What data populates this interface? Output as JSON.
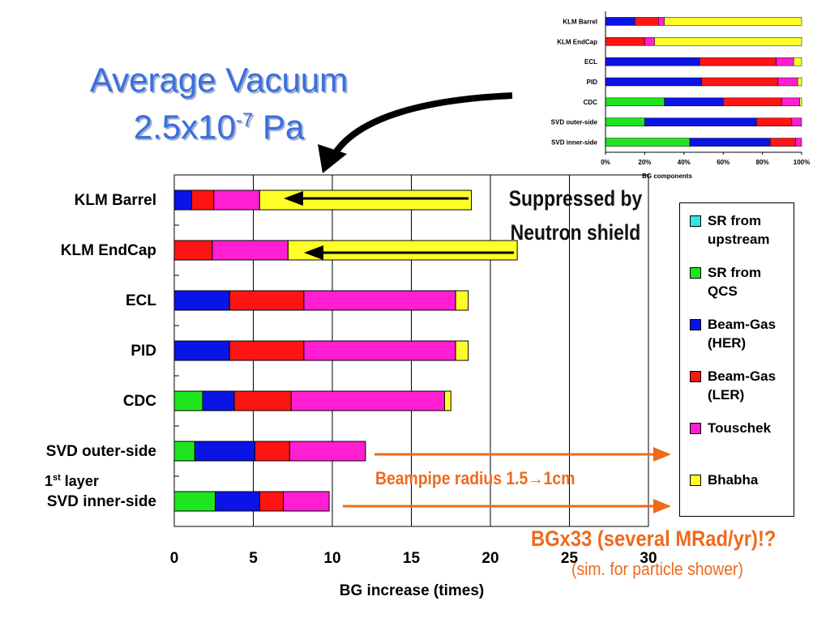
{
  "slide": {
    "title_line1": "Average Vacuum",
    "title_base": "2.5x10",
    "title_exp": "-7",
    "title_unit": " Pa",
    "note_suppressed": "Suppressed by\nNeutron shield",
    "note_beampipe_pre": "Beampipe radius 1.5",
    "note_beampipe_arrow": "→",
    "note_beampipe_post": "1cm",
    "note_bgx": "BGx33 (several MRad/yr)!?",
    "note_sim": "(sim. for particle shower)",
    "layer_note": "1",
    "layer_note_sup": "st",
    "layer_note_post": " layer"
  },
  "colors": {
    "sr_upstream": "#33e6e6",
    "sr_qcs": "#1ee61e",
    "beamgas_her": "#0a14e6",
    "beamgas_ler": "#ff1414",
    "touschek": "#ff1ed2",
    "bhabha": "#ffff28",
    "arrow_orange": "#ee6a1c"
  },
  "legend": [
    {
      "key": "sr_upstream",
      "label": "SR from\nupstream"
    },
    {
      "key": "sr_qcs",
      "label": "SR from\nQCS"
    },
    {
      "key": "beamgas_her",
      "label": "Beam-Gas\n(HER)"
    },
    {
      "key": "beamgas_ler",
      "label": "Beam-Gas\n(LER)"
    },
    {
      "key": "touschek",
      "label": "Touschek"
    },
    {
      "key": "bhabha",
      "label": "Bhabha"
    }
  ],
  "chart_data": [
    {
      "type": "bar",
      "orientation": "horizontal",
      "stacked": true,
      "categories": [
        "KLM Barrel",
        "KLM EndCap",
        "ECL",
        "PID",
        "CDC",
        "SVD outer-side",
        "SVD inner-side"
      ],
      "xlabel": "BG increase (times)",
      "xlim": [
        0,
        30
      ],
      "xticks": [
        0,
        5,
        10,
        15,
        20,
        25,
        30
      ],
      "grid": "vertical",
      "series": [
        {
          "name": "SR from upstream",
          "key": "sr_upstream",
          "values": [
            0,
            0,
            0,
            0,
            0,
            0,
            0
          ]
        },
        {
          "name": "SR from QCS",
          "key": "sr_qcs",
          "values": [
            0,
            0,
            0,
            0,
            1.8,
            1.3,
            2.6
          ]
        },
        {
          "name": "Beam-Gas (HER)",
          "key": "beamgas_her",
          "values": [
            1.1,
            0,
            3.5,
            3.5,
            2.0,
            3.8,
            2.8
          ]
        },
        {
          "name": "Beam-Gas (LER)",
          "key": "beamgas_ler",
          "values": [
            1.4,
            2.4,
            4.7,
            4.7,
            3.6,
            2.2,
            1.5
          ]
        },
        {
          "name": "Touschek",
          "key": "touschek",
          "values": [
            2.9,
            4.8,
            9.6,
            9.6,
            9.7,
            4.8,
            2.9
          ]
        },
        {
          "name": "Bhabha",
          "key": "bhabha",
          "values": [
            13.4,
            14.5,
            0.8,
            0.8,
            0.4,
            0,
            0
          ]
        }
      ]
    },
    {
      "type": "bar",
      "orientation": "horizontal",
      "stacked": true,
      "percent": true,
      "categories": [
        "KLM Barrel",
        "KLM EndCap",
        "ECL",
        "PID",
        "CDC",
        "SVD outer-side",
        "SVD inner-side"
      ],
      "xlabel": "BG components",
      "xlim": [
        0,
        100
      ],
      "xticks": [
        "0%",
        "20%",
        "40%",
        "60%",
        "80%",
        "100%"
      ],
      "grid": "none",
      "series": [
        {
          "name": "SR from upstream",
          "key": "sr_upstream",
          "values": [
            0,
            0,
            0,
            0,
            0,
            0,
            0
          ]
        },
        {
          "name": "SR from QCS",
          "key": "sr_qcs",
          "values": [
            0,
            0,
            0,
            0,
            30,
            20,
            43
          ]
        },
        {
          "name": "Beam-Gas (HER)",
          "key": "beamgas_her",
          "values": [
            15,
            0,
            48,
            49,
            30,
            57,
            41
          ]
        },
        {
          "name": "Beam-Gas (LER)",
          "key": "beamgas_ler",
          "values": [
            12,
            20,
            39,
            39,
            30,
            18,
            13
          ]
        },
        {
          "name": "Touschek",
          "key": "touschek",
          "values": [
            3,
            5,
            9,
            10,
            9,
            5,
            3
          ]
        },
        {
          "name": "Bhabha",
          "key": "bhabha",
          "values": [
            70,
            75,
            4,
            2,
            1,
            0,
            0
          ]
        }
      ]
    }
  ]
}
